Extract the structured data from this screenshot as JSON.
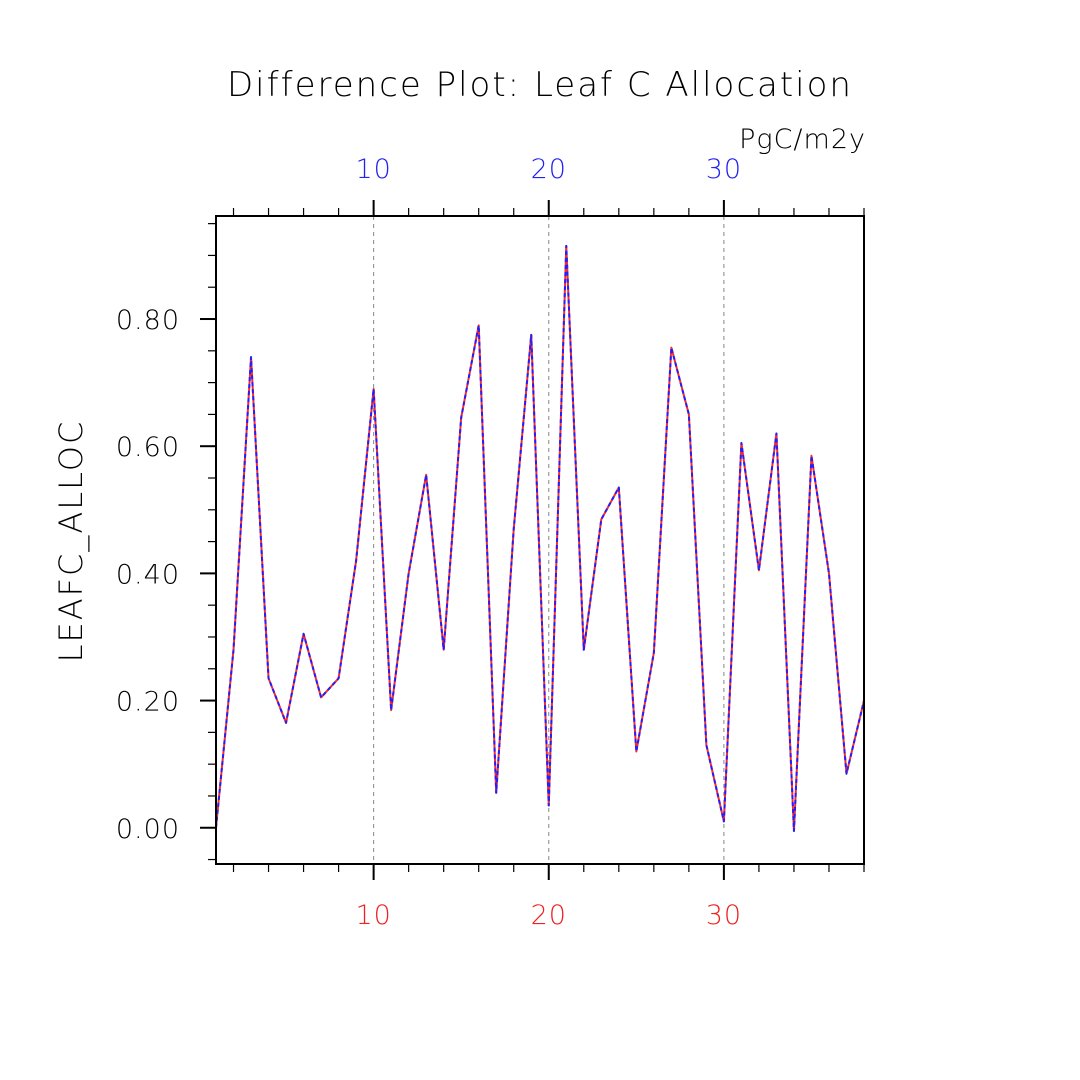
{
  "chart_data": {
    "type": "line",
    "title": "Difference Plot: Leaf C Allocation",
    "units": "PgC/m2y",
    "ylabel": "LEAFC_ALLOC",
    "xlabel": "",
    "xlim": [
      1,
      38
    ],
    "ylim": [
      -0.057,
      0.962
    ],
    "grid": "vertical dashed at 10, 20, 30",
    "x_ticks": [
      10,
      20,
      30
    ],
    "y_ticks": [
      0.0,
      0.2,
      0.4,
      0.6,
      0.8
    ],
    "y_tick_labels": [
      "0.00",
      "0.20",
      "0.40",
      "0.60",
      "0.80"
    ],
    "top_tick_labels": [
      "10",
      "20",
      "30"
    ],
    "bottom_tick_labels": [
      "10",
      "20",
      "30"
    ],
    "colors": {
      "top_axis_labels": "#2222ee",
      "bottom_axis_labels": "#ee2222",
      "series_a": "#ff2a1f",
      "series_b": "#1f1fff",
      "grid": "#888888",
      "axis": "#000000"
    },
    "x": [
      1,
      2,
      3,
      4,
      5,
      6,
      7,
      8,
      9,
      10,
      11,
      12,
      13,
      14,
      15,
      16,
      17,
      18,
      19,
      20,
      21,
      22,
      23,
      24,
      25,
      26,
      27,
      28,
      29,
      30,
      31,
      32,
      33,
      34,
      35,
      36,
      37,
      38
    ],
    "series": [
      {
        "values": [
          0.0,
          0.28,
          0.74,
          0.235,
          0.165,
          0.305,
          0.205,
          0.235,
          0.42,
          0.69,
          0.185,
          0.4,
          0.555,
          0.28,
          0.645,
          0.79,
          0.055,
          0.47,
          0.775,
          0.035,
          0.915,
          0.28,
          0.485,
          0.535,
          0.12,
          0.275,
          0.755,
          0.65,
          0.13,
          0.01,
          0.605,
          0.405,
          0.62,
          -0.005,
          0.585,
          0.4,
          0.085,
          0.2
        ]
      },
      {
        "values": [
          0.0,
          0.28,
          0.74,
          0.235,
          0.165,
          0.305,
          0.205,
          0.235,
          0.42,
          0.69,
          0.185,
          0.4,
          0.555,
          0.28,
          0.645,
          0.79,
          0.055,
          0.47,
          0.775,
          0.035,
          0.915,
          0.28,
          0.485,
          0.535,
          0.12,
          0.275,
          0.755,
          0.65,
          0.13,
          0.01,
          0.605,
          0.405,
          0.62,
          -0.005,
          0.585,
          0.4,
          0.085,
          0.2
        ]
      }
    ]
  }
}
